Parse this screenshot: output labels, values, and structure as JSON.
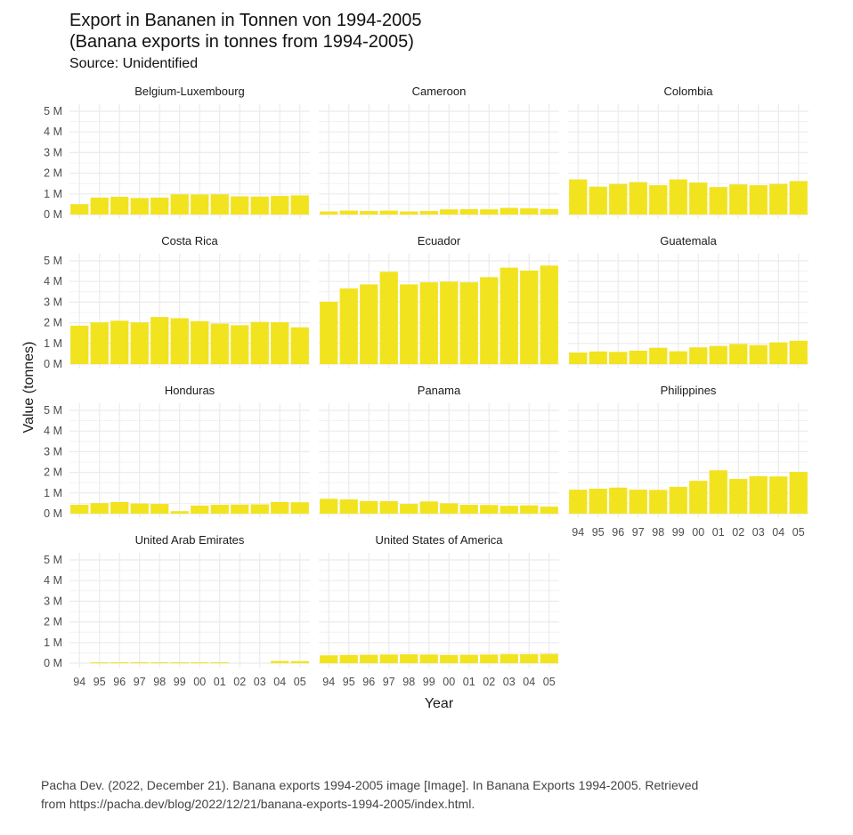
{
  "header": {
    "title_line1": "Export in Bananen in Tonnen von 1994-2005",
    "title_line2": "(Banana exports in tonnes from 1994-2005)",
    "subtitle": "Source: Unidentified"
  },
  "caption": {
    "line1": "Pacha Dev. (2022, December 21). Banana exports 1994-2005 image [Image]. In Banana Exports 1994-2005. Retrieved",
    "line2": "from https://pacha.dev/blog/2022/12/21/banana-exports-1994-2005/index.html."
  },
  "colors": {
    "bar": "#f2e31f",
    "grid": "#ebebeb"
  },
  "chart_data": {
    "type": "bar",
    "layout": "facet-grid-3-columns",
    "xlabel": "Year",
    "ylabel": "Value (tonnes)",
    "ylim": [
      0,
      5000000
    ],
    "y_ticks": [
      0,
      1000000,
      2000000,
      3000000,
      4000000,
      5000000
    ],
    "y_tick_labels": [
      "0 M",
      "1 M",
      "2 M",
      "3 M",
      "4 M",
      "5 M"
    ],
    "categories": [
      "94",
      "95",
      "96",
      "97",
      "98",
      "99",
      "00",
      "01",
      "02",
      "03",
      "04",
      "05"
    ],
    "grid": true,
    "panels": [
      {
        "name": "Belgium-Luxembourg",
        "values": [
          500000,
          820000,
          860000,
          800000,
          820000,
          980000,
          970000,
          980000,
          880000,
          870000,
          900000,
          930000
        ]
      },
      {
        "name": "Cameroon",
        "values": [
          150000,
          190000,
          170000,
          190000,
          150000,
          170000,
          250000,
          260000,
          250000,
          320000,
          300000,
          270000
        ]
      },
      {
        "name": "Colombia",
        "values": [
          1700000,
          1350000,
          1480000,
          1570000,
          1420000,
          1700000,
          1550000,
          1330000,
          1460000,
          1420000,
          1480000,
          1620000
        ]
      },
      {
        "name": "Costa Rica",
        "values": [
          1860000,
          2020000,
          2100000,
          2020000,
          2280000,
          2220000,
          2080000,
          1960000,
          1880000,
          2040000,
          2030000,
          1780000
        ]
      },
      {
        "name": "Ecuador",
        "values": [
          3020000,
          3660000,
          3860000,
          4470000,
          3860000,
          3960000,
          3990000,
          3960000,
          4210000,
          4670000,
          4530000,
          4770000
        ]
      },
      {
        "name": "Guatemala",
        "values": [
          560000,
          610000,
          590000,
          650000,
          790000,
          620000,
          810000,
          880000,
          970000,
          920000,
          1050000,
          1130000
        ]
      },
      {
        "name": "Honduras",
        "values": [
          430000,
          510000,
          560000,
          490000,
          470000,
          120000,
          390000,
          430000,
          440000,
          450000,
          560000,
          550000
        ]
      },
      {
        "name": "Panama",
        "values": [
          720000,
          690000,
          610000,
          600000,
          470000,
          590000,
          500000,
          430000,
          420000,
          380000,
          400000,
          340000
        ]
      },
      {
        "name": "Philippines",
        "values": [
          1160000,
          1210000,
          1260000,
          1160000,
          1150000,
          1300000,
          1590000,
          2100000,
          1680000,
          1810000,
          1800000,
          2020000
        ]
      },
      {
        "name": "United Arab Emirates",
        "values": [
          0,
          10000,
          10000,
          50000,
          30000,
          30000,
          20000,
          30000,
          0,
          0,
          110000,
          100000
        ]
      },
      {
        "name": "United States of America",
        "values": [
          380000,
          400000,
          410000,
          420000,
          430000,
          420000,
          400000,
          410000,
          420000,
          440000,
          440000,
          450000
        ]
      }
    ]
  }
}
